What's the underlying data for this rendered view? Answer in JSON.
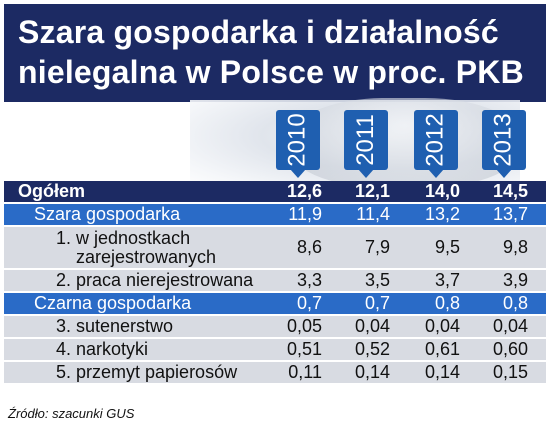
{
  "title": {
    "line1": "Szara gospodarka i działalność",
    "line2": "nielegalna w Polsce w proc. PKB"
  },
  "chart_data": {
    "type": "table",
    "title": "Szara gospodarka i działalność nielegalna w Polsce w proc. PKB",
    "columns": [
      "2010",
      "2011",
      "2012",
      "2013"
    ],
    "rows": [
      {
        "label": "Ogółem",
        "values": [
          "12,6",
          "12,1",
          "14,0",
          "14,5"
        ]
      },
      {
        "label": "Szara gospodarka",
        "values": [
          "11,9",
          "11,4",
          "13,2",
          "13,7"
        ]
      },
      {
        "label_line1": "1. w jednostkach",
        "label_line2": "zarejestrowanych",
        "values": [
          "8,6",
          "7,9",
          "9,5",
          "9,8"
        ]
      },
      {
        "label": "2. praca nierejestrowana",
        "values": [
          "3,3",
          "3,5",
          "3,7",
          "3,9"
        ]
      },
      {
        "label": "Czarna gospodarka",
        "values": [
          "0,7",
          "0,7",
          "0,8",
          "0,8"
        ]
      },
      {
        "label": "3. sutenerstwo",
        "values": [
          "0,05",
          "0,04",
          "0,04",
          "0,04"
        ]
      },
      {
        "label": "4. narkotyki",
        "values": [
          "0,51",
          "0,52",
          "0,61",
          "0,60"
        ]
      },
      {
        "label": "5. przemyt papierosów",
        "values": [
          "0,11",
          "0,14",
          "0,14",
          "0,15"
        ]
      }
    ]
  },
  "source": "Źródło: szacunki GUS",
  "colors": {
    "title_bg": "#1c2a63",
    "header_row_bg": "#1c2a63",
    "section_row_bg": "#2a6bc7",
    "tab_bg": "#1f5fb0",
    "body_row_bg": "#d8dbe2"
  }
}
